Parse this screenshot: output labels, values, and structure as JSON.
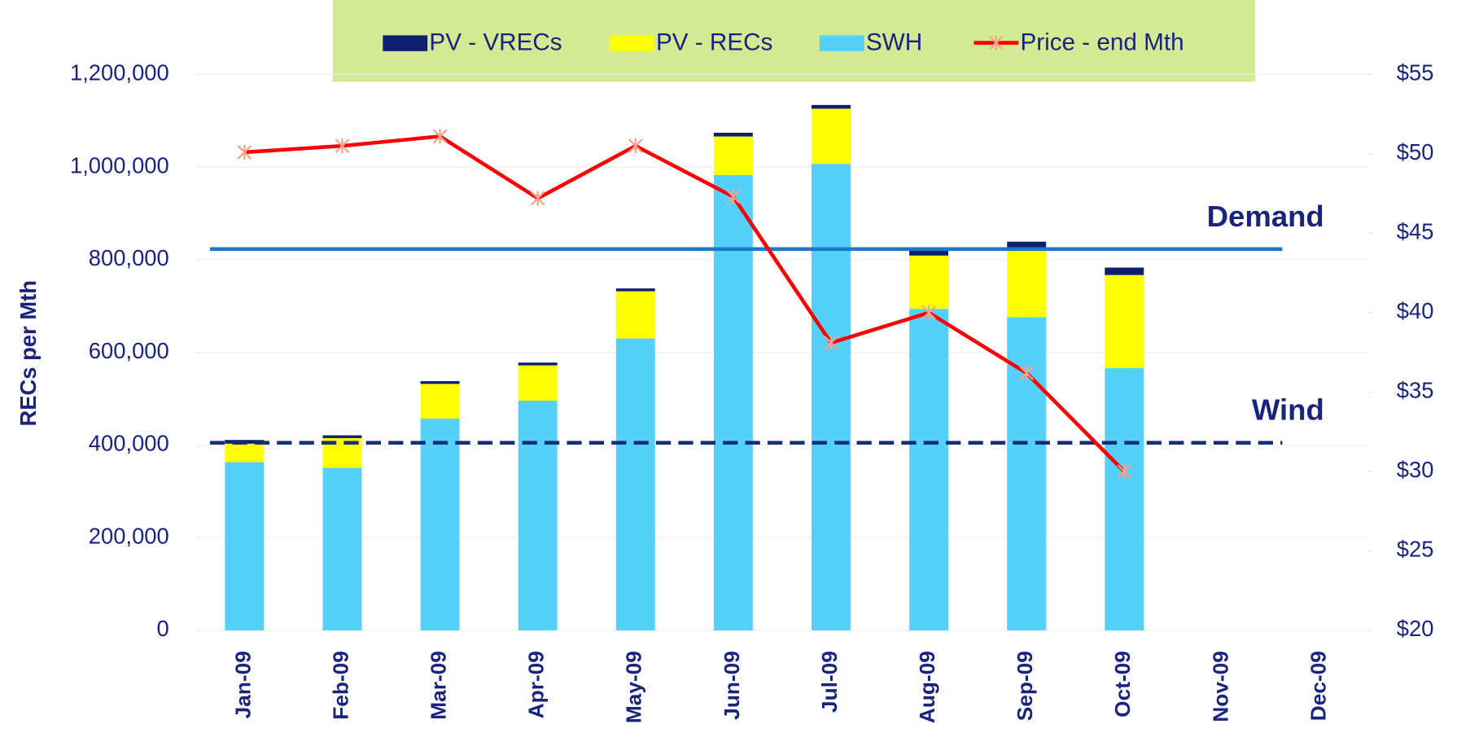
{
  "chart_data": {
    "type": "bar",
    "stacked": true,
    "categories": [
      "Jan-09",
      "Feb-09",
      "Mar-09",
      "Apr-09",
      "May-09",
      "Jun-09",
      "Jul-09",
      "Aug-09",
      "Sep-09",
      "Oct-09",
      "Nov-09",
      "Dec-09"
    ],
    "series": [
      {
        "name": "SWH",
        "color": "#55d0fb",
        "type": "bar",
        "values": [
          363000,
          351000,
          457000,
          496000,
          630000,
          983000,
          1007000,
          694000,
          676000,
          566000,
          null,
          null
        ]
      },
      {
        "name": "PV - RECs",
        "color": "#ffff00",
        "type": "bar",
        "values": [
          40000,
          64000,
          75000,
          76000,
          102000,
          83000,
          119000,
          115000,
          147000,
          201000,
          null,
          null
        ]
      },
      {
        "name": "PV - VRECs",
        "color": "#0d1f6e",
        "type": "bar",
        "values": [
          8000,
          6000,
          6000,
          6000,
          6000,
          8000,
          8000,
          14000,
          16000,
          16000,
          null,
          null
        ]
      },
      {
        "name": "Price - end Mth",
        "color": "#ff0000",
        "marker_color": "#f4a38a",
        "type": "line",
        "axis": "y2",
        "values": [
          50.1,
          50.5,
          51.1,
          47.2,
          50.5,
          47.3,
          38.1,
          40.0,
          36.2,
          30.0,
          null,
          null
        ]
      }
    ],
    "legend_order": [
      2,
      1,
      0,
      3
    ],
    "reference_lines": [
      {
        "label": "Demand",
        "value": 823000,
        "color": "#1e78c8",
        "dashed": false
      },
      {
        "label": "Wind",
        "value": 405000,
        "color": "#142c78",
        "dashed": true
      }
    ],
    "ylabel": "RECs per Mth",
    "ylim": [
      0,
      1200000
    ],
    "yticks": [
      0,
      {
        "value": 200000,
        "label": "200,000"
      },
      {
        "value": 400000,
        "label": "400,000"
      },
      {
        "value": 600000,
        "label": "600,000"
      },
      {
        "value": 800000,
        "label": "800,000"
      },
      {
        "value": 1000000,
        "label": "1,000,000"
      },
      {
        "value": 1200000,
        "label": "1,200,000"
      }
    ],
    "y2lim": [
      20,
      55
    ],
    "y2ticks": [
      {
        "value": 20,
        "label": "$20"
      },
      {
        "value": 25,
        "label": "$25"
      },
      {
        "value": 30,
        "label": "$30"
      },
      {
        "value": 35,
        "label": "$35"
      },
      {
        "value": 40,
        "label": "$40"
      },
      {
        "value": 45,
        "label": "$45"
      },
      {
        "value": 50,
        "label": "$50"
      },
      {
        "value": 55,
        "label": "$55"
      }
    ],
    "grid": true,
    "legend_position": "top"
  }
}
